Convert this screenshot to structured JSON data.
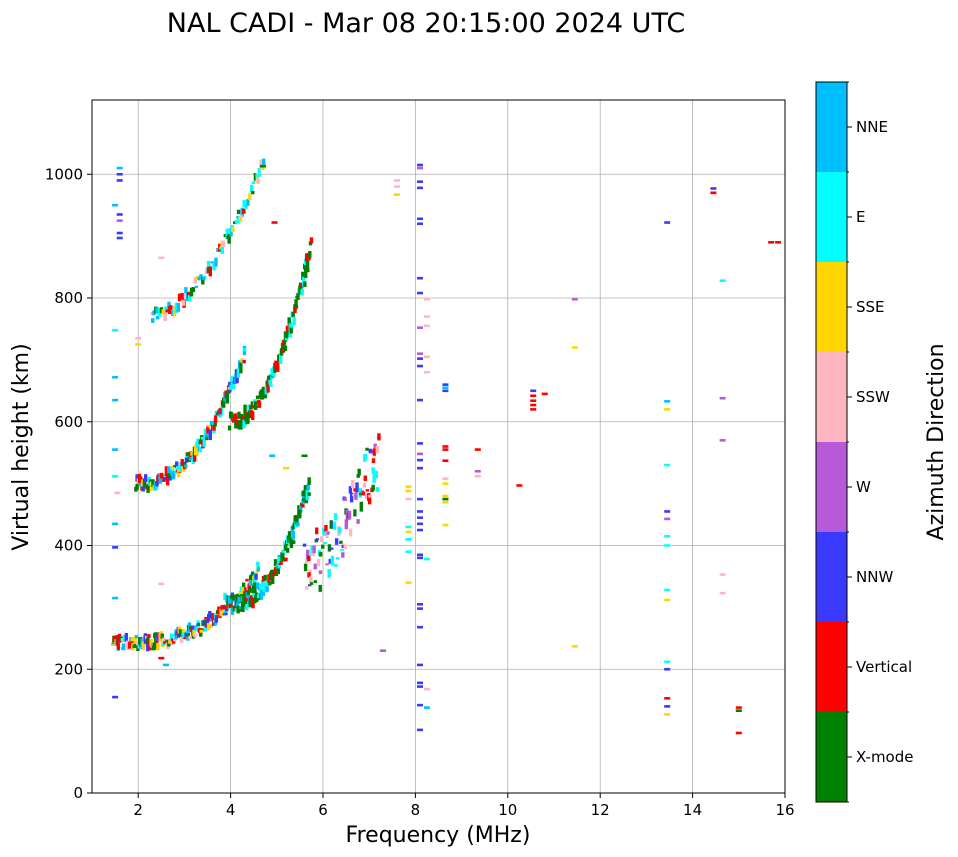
{
  "chart_data": {
    "type": "scatter",
    "title": "NAL CADI - Mar 08 20:15:00 2024 UTC",
    "xlabel": "Frequency (MHz)",
    "ylabel": "Virtual height (km)",
    "xlim": [
      1,
      16
    ],
    "ylim": [
      0,
      1120
    ],
    "xticks": [
      2,
      4,
      6,
      8,
      10,
      12,
      14,
      16
    ],
    "yticks": [
      0,
      200,
      400,
      600,
      800,
      1000
    ],
    "grid": true,
    "colorbar": {
      "label": "Azimuth Direction",
      "categories": [
        {
          "name": "X-mode",
          "color": "#008000"
        },
        {
          "name": "Vertical",
          "color": "#ff0000"
        },
        {
          "name": "NNW",
          "color": "#3a3aff"
        },
        {
          "name": "W",
          "color": "#b65ad8"
        },
        {
          "name": "SSW",
          "color": "#ffb6c1"
        },
        {
          "name": "SSE",
          "color": "#ffd700"
        },
        {
          "name": "E",
          "color": "#00ffff"
        },
        {
          "name": "NNE",
          "color": "#00bfff"
        }
      ]
    },
    "traces": [
      {
        "name": "O-mode F trace",
        "x0": 1.45,
        "x1": 4.6,
        "y0": 242,
        "y1": 360,
        "curve": 3.0,
        "spread": 10,
        "n": 130,
        "colors": [
          "Vertical",
          "NNE",
          "E",
          "X-mode",
          "SSE",
          "NNW",
          "SSW"
        ]
      },
      {
        "name": "X-mode F trace",
        "x0": 3.9,
        "x1": 5.7,
        "y0": 305,
        "y1": 500,
        "curve": 2.4,
        "spread": 12,
        "n": 90,
        "colors": [
          "X-mode",
          "X-mode",
          "X-mode",
          "Vertical",
          "E",
          "NNE"
        ]
      },
      {
        "name": "F trace spread",
        "x0": 5.6,
        "x1": 7.2,
        "y0": 360,
        "y1": 545,
        "curve": 1.4,
        "spread": 45,
        "n": 70,
        "colors": [
          "W",
          "SSW",
          "E",
          "NNW",
          "Vertical",
          "X-mode"
        ]
      },
      {
        "name": "Multi-hop O-mode",
        "x0": 1.95,
        "x1": 4.3,
        "y0": 500,
        "y1": 710,
        "curve": 2.3,
        "spread": 9,
        "n": 90,
        "colors": [
          "Vertical",
          "NNE",
          "X-mode",
          "SSE",
          "E",
          "NNW"
        ]
      },
      {
        "name": "Multi-hop X-mode",
        "x0": 4.0,
        "x1": 5.75,
        "y0": 600,
        "y1": 890,
        "curve": 2.1,
        "spread": 12,
        "n": 85,
        "colors": [
          "X-mode",
          "X-mode",
          "X-mode",
          "Vertical",
          "E"
        ]
      },
      {
        "name": "Third-hop trace",
        "x0": 2.3,
        "x1": 4.7,
        "y0": 770,
        "y1": 1015,
        "curve": 1.7,
        "spread": 11,
        "n": 60,
        "colors": [
          "Vertical",
          "X-mode",
          "NNE",
          "SSE",
          "E",
          "SSW"
        ]
      }
    ],
    "points": [
      {
        "f": 1.6,
        "h": 1000,
        "c": "NNW"
      },
      {
        "f": 1.6,
        "h": 990,
        "c": "NNW"
      },
      {
        "f": 1.6,
        "h": 1010,
        "c": "NNE"
      },
      {
        "f": 1.6,
        "h": 935,
        "c": "NNW"
      },
      {
        "f": 1.6,
        "h": 925,
        "c": "W"
      },
      {
        "f": 1.6,
        "h": 905,
        "c": "NNW"
      },
      {
        "f": 1.6,
        "h": 897,
        "c": "NNW"
      },
      {
        "f": 1.5,
        "h": 950,
        "c": "NNE"
      },
      {
        "f": 1.5,
        "h": 748,
        "c": "E"
      },
      {
        "f": 1.5,
        "h": 672,
        "c": "NNE"
      },
      {
        "f": 1.5,
        "h": 635,
        "c": "NNE"
      },
      {
        "f": 1.5,
        "h": 555,
        "c": "NNE"
      },
      {
        "f": 1.5,
        "h": 512,
        "c": "E"
      },
      {
        "f": 1.5,
        "h": 435,
        "c": "NNE"
      },
      {
        "f": 1.5,
        "h": 397,
        "c": "NNW"
      },
      {
        "f": 1.5,
        "h": 315,
        "c": "NNE"
      },
      {
        "f": 1.5,
        "h": 155,
        "c": "NNW"
      },
      {
        "f": 1.55,
        "h": 485,
        "c": "SSW"
      },
      {
        "f": 2.0,
        "h": 735,
        "c": "SSW"
      },
      {
        "f": 2.0,
        "h": 725,
        "c": "SSE"
      },
      {
        "f": 2.5,
        "h": 865,
        "c": "SSW"
      },
      {
        "f": 2.5,
        "h": 338,
        "c": "SSW"
      },
      {
        "f": 2.5,
        "h": 218,
        "c": "Vertical"
      },
      {
        "f": 2.6,
        "h": 207,
        "c": "NNE"
      },
      {
        "f": 4.7,
        "h": 1013,
        "c": "X-mode"
      },
      {
        "f": 4.6,
        "h": 998,
        "c": "E"
      },
      {
        "f": 4.95,
        "h": 922,
        "c": "Vertical"
      },
      {
        "f": 4.9,
        "h": 545,
        "c": "NNE"
      },
      {
        "f": 5.6,
        "h": 545,
        "c": "X-mode"
      },
      {
        "f": 5.2,
        "h": 525,
        "c": "SSE"
      },
      {
        "f": 7.3,
        "h": 230,
        "c": "W"
      },
      {
        "f": 7.6,
        "h": 990,
        "c": "SSW"
      },
      {
        "f": 7.6,
        "h": 980,
        "c": "SSW"
      },
      {
        "f": 7.6,
        "h": 967,
        "c": "SSE"
      },
      {
        "f": 7.85,
        "h": 495,
        "c": "SSE"
      },
      {
        "f": 7.85,
        "h": 488,
        "c": "SSE"
      },
      {
        "f": 7.85,
        "h": 475,
        "c": "SSW"
      },
      {
        "f": 7.85,
        "h": 430,
        "c": "E"
      },
      {
        "f": 7.85,
        "h": 422,
        "c": "SSE"
      },
      {
        "f": 7.85,
        "h": 410,
        "c": "E"
      },
      {
        "f": 7.85,
        "h": 390,
        "c": "E"
      },
      {
        "f": 7.85,
        "h": 340,
        "c": "SSE"
      },
      {
        "f": 8.1,
        "h": 1015,
        "c": "NNW"
      },
      {
        "f": 8.1,
        "h": 1010,
        "c": "W"
      },
      {
        "f": 8.1,
        "h": 988,
        "c": "NNW"
      },
      {
        "f": 8.1,
        "h": 978,
        "c": "NNW"
      },
      {
        "f": 8.1,
        "h": 928,
        "c": "NNW"
      },
      {
        "f": 8.1,
        "h": 920,
        "c": "NNW"
      },
      {
        "f": 8.1,
        "h": 832,
        "c": "NNW"
      },
      {
        "f": 8.1,
        "h": 808,
        "c": "NNW"
      },
      {
        "f": 8.1,
        "h": 752,
        "c": "W"
      },
      {
        "f": 8.1,
        "h": 710,
        "c": "W"
      },
      {
        "f": 8.1,
        "h": 702,
        "c": "NNW"
      },
      {
        "f": 8.1,
        "h": 690,
        "c": "NNW"
      },
      {
        "f": 8.1,
        "h": 635,
        "c": "NNW"
      },
      {
        "f": 8.1,
        "h": 565,
        "c": "NNW"
      },
      {
        "f": 8.1,
        "h": 548,
        "c": "W"
      },
      {
        "f": 8.1,
        "h": 538,
        "c": "NNW"
      },
      {
        "f": 8.1,
        "h": 525,
        "c": "NNW"
      },
      {
        "f": 8.1,
        "h": 475,
        "c": "NNW"
      },
      {
        "f": 8.1,
        "h": 455,
        "c": "NNW"
      },
      {
        "f": 8.1,
        "h": 445,
        "c": "NNW"
      },
      {
        "f": 8.1,
        "h": 435,
        "c": "NNW"
      },
      {
        "f": 8.1,
        "h": 425,
        "c": "NNW"
      },
      {
        "f": 8.1,
        "h": 385,
        "c": "NNW"
      },
      {
        "f": 8.1,
        "h": 380,
        "c": "NNW"
      },
      {
        "f": 8.1,
        "h": 305,
        "c": "NNW"
      },
      {
        "f": 8.1,
        "h": 298,
        "c": "NNW"
      },
      {
        "f": 8.1,
        "h": 268,
        "c": "NNW"
      },
      {
        "f": 8.1,
        "h": 207,
        "c": "NNW"
      },
      {
        "f": 8.1,
        "h": 178,
        "c": "NNW"
      },
      {
        "f": 8.1,
        "h": 172,
        "c": "NNW"
      },
      {
        "f": 8.1,
        "h": 142,
        "c": "NNW"
      },
      {
        "f": 8.1,
        "h": 102,
        "c": "NNW"
      },
      {
        "f": 8.25,
        "h": 798,
        "c": "SSW"
      },
      {
        "f": 8.25,
        "h": 770,
        "c": "SSW"
      },
      {
        "f": 8.25,
        "h": 755,
        "c": "SSW"
      },
      {
        "f": 8.25,
        "h": 705,
        "c": "SSW"
      },
      {
        "f": 8.25,
        "h": 680,
        "c": "SSW"
      },
      {
        "f": 8.25,
        "h": 378,
        "c": "E"
      },
      {
        "f": 8.25,
        "h": 168,
        "c": "SSW"
      },
      {
        "f": 8.25,
        "h": 138,
        "c": "NNE"
      },
      {
        "f": 8.65,
        "h": 660,
        "c": "NNW"
      },
      {
        "f": 8.65,
        "h": 655,
        "c": "NNE"
      },
      {
        "f": 8.65,
        "h": 650,
        "c": "NNW"
      },
      {
        "f": 8.65,
        "h": 560,
        "c": "Vertical"
      },
      {
        "f": 8.65,
        "h": 555,
        "c": "Vertical"
      },
      {
        "f": 8.65,
        "h": 537,
        "c": "Vertical"
      },
      {
        "f": 8.65,
        "h": 508,
        "c": "SSW"
      },
      {
        "f": 8.65,
        "h": 500,
        "c": "SSE"
      },
      {
        "f": 8.65,
        "h": 480,
        "c": "SSE"
      },
      {
        "f": 8.65,
        "h": 475,
        "c": "X-mode"
      },
      {
        "f": 8.65,
        "h": 470,
        "c": "SSE"
      },
      {
        "f": 8.65,
        "h": 433,
        "c": "SSE"
      },
      {
        "f": 9.35,
        "h": 555,
        "c": "Vertical"
      },
      {
        "f": 9.35,
        "h": 520,
        "c": "W"
      },
      {
        "f": 9.35,
        "h": 512,
        "c": "SSW"
      },
      {
        "f": 10.25,
        "h": 497,
        "c": "Vertical"
      },
      {
        "f": 10.55,
        "h": 650,
        "c": "NNW"
      },
      {
        "f": 10.55,
        "h": 642,
        "c": "Vertical"
      },
      {
        "f": 10.55,
        "h": 634,
        "c": "Vertical"
      },
      {
        "f": 10.55,
        "h": 627,
        "c": "Vertical"
      },
      {
        "f": 10.55,
        "h": 620,
        "c": "Vertical"
      },
      {
        "f": 10.8,
        "h": 645,
        "c": "Vertical"
      },
      {
        "f": 11.45,
        "h": 798,
        "c": "W"
      },
      {
        "f": 11.45,
        "h": 720,
        "c": "SSE"
      },
      {
        "f": 11.45,
        "h": 237,
        "c": "SSE"
      },
      {
        "f": 13.45,
        "h": 922,
        "c": "NNW"
      },
      {
        "f": 13.45,
        "h": 633,
        "c": "NNE"
      },
      {
        "f": 13.45,
        "h": 620,
        "c": "SSE"
      },
      {
        "f": 13.45,
        "h": 530,
        "c": "E"
      },
      {
        "f": 13.45,
        "h": 455,
        "c": "NNW"
      },
      {
        "f": 13.45,
        "h": 443,
        "c": "W"
      },
      {
        "f": 13.45,
        "h": 415,
        "c": "E"
      },
      {
        "f": 13.45,
        "h": 400,
        "c": "E"
      },
      {
        "f": 13.45,
        "h": 328,
        "c": "E"
      },
      {
        "f": 13.45,
        "h": 312,
        "c": "SSE"
      },
      {
        "f": 13.45,
        "h": 212,
        "c": "E"
      },
      {
        "f": 13.45,
        "h": 200,
        "c": "NNW"
      },
      {
        "f": 13.45,
        "h": 153,
        "c": "Vertical"
      },
      {
        "f": 13.45,
        "h": 140,
        "c": "NNW"
      },
      {
        "f": 13.45,
        "h": 127,
        "c": "SSE"
      },
      {
        "f": 14.45,
        "h": 977,
        "c": "NNW"
      },
      {
        "f": 14.45,
        "h": 970,
        "c": "Vertical"
      },
      {
        "f": 14.65,
        "h": 828,
        "c": "E"
      },
      {
        "f": 14.65,
        "h": 638,
        "c": "W"
      },
      {
        "f": 14.65,
        "h": 570,
        "c": "W"
      },
      {
        "f": 14.65,
        "h": 353,
        "c": "SSW"
      },
      {
        "f": 14.65,
        "h": 323,
        "c": "SSW"
      },
      {
        "f": 15.0,
        "h": 138,
        "c": "Vertical"
      },
      {
        "f": 15.0,
        "h": 133,
        "c": "X-mode"
      },
      {
        "f": 15.0,
        "h": 97,
        "c": "Vertical"
      },
      {
        "f": 15.85,
        "h": 890,
        "c": "Vertical"
      },
      {
        "f": 15.7,
        "h": 890,
        "c": "Vertical"
      }
    ]
  }
}
